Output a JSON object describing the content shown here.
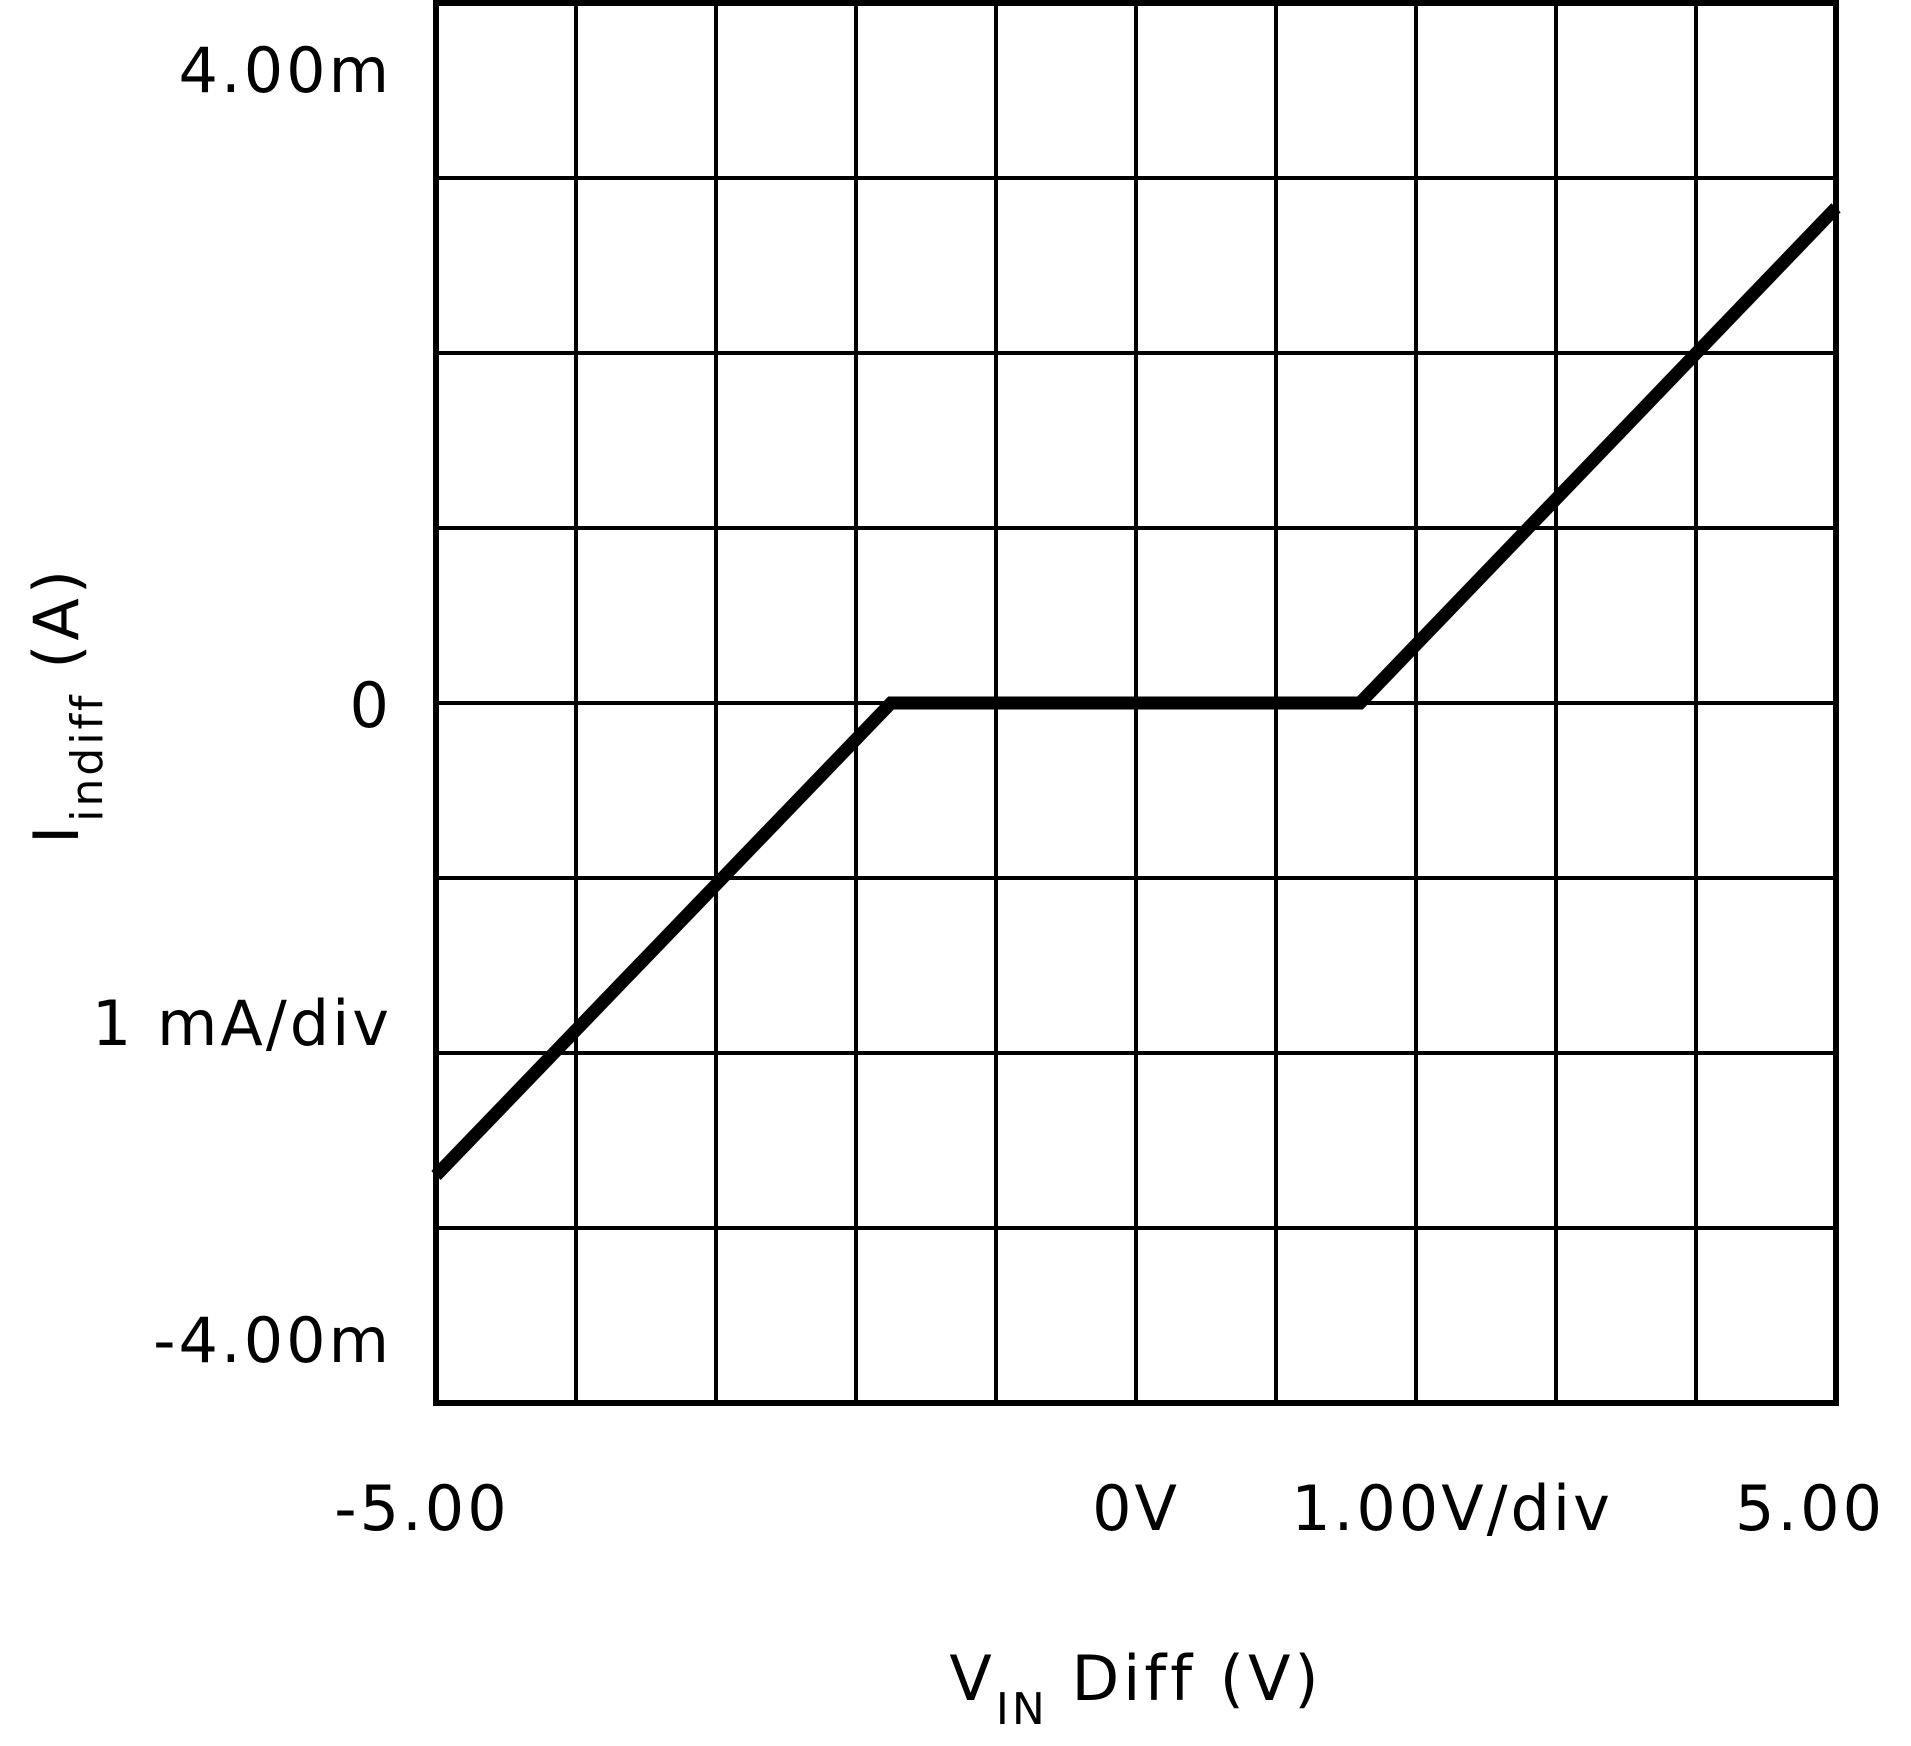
{
  "chart_data": {
    "type": "line",
    "xlabel": {
      "main": "V",
      "sub": "IN",
      "rest": " Diff (V)"
    },
    "ylabel": {
      "main": "I",
      "sub": "indiff",
      "rest": " (A)"
    },
    "xlim": [
      -5.0,
      5.0
    ],
    "ylim": [
      -4.0,
      4.0
    ],
    "x_divisions": 10,
    "y_divisions": 8,
    "grid": true,
    "x_tick_labels": {
      "left": "-5.00",
      "center": "0V",
      "scale": "1.00V/div",
      "right": "5.00"
    },
    "y_tick_labels": {
      "top": "4.00m",
      "center": "0",
      "scale": "1 mA/div",
      "bottom": "-4.00m"
    },
    "y_unit": "mA",
    "series": [
      {
        "x": [
          -5.0,
          -1.75,
          1.6,
          5.0
        ],
        "y": [
          -2.7,
          0.0,
          0.0,
          2.83
        ]
      }
    ],
    "colors": {
      "line": "#000000",
      "grid": "#000000",
      "background": "#ffffff"
    }
  }
}
